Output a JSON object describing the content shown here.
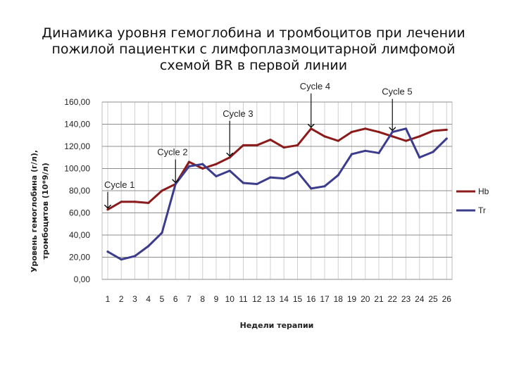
{
  "title_lines": [
    "Динамика уровня гемоглобина и тромбоцитов при  лечении",
    "пожилой пациентки с лимфоплазмоцитарной лимфомой",
    "схемой BR в первой линии"
  ],
  "chart_data": {
    "type": "line",
    "x": [
      1,
      2,
      3,
      4,
      5,
      6,
      7,
      8,
      9,
      10,
      11,
      12,
      13,
      14,
      15,
      16,
      17,
      18,
      19,
      20,
      21,
      22,
      23,
      24,
      25,
      26
    ],
    "xlabel": "Недели терапии",
    "ylabel_lines": [
      "Уровень гемоглобина (г/л),",
      "тромбоцитов (10*9/л)"
    ],
    "ylim": [
      0,
      160
    ],
    "y_ticks": [
      "0,00",
      "20,00",
      "40,00",
      "60,00",
      "80,00",
      "100,00",
      "120,00",
      "140,00",
      "160,00"
    ],
    "grid": "horizontal and vertical",
    "legend_position": "right",
    "series": [
      {
        "name": "Hb",
        "color": "#8b1a1a",
        "values": [
          63,
          70,
          70,
          69,
          80,
          86,
          106,
          100,
          104,
          110,
          121,
          121,
          126,
          119,
          121,
          136,
          129,
          125,
          133,
          136,
          133,
          129,
          125,
          129,
          134,
          135
        ]
      },
      {
        "name": "Tr",
        "color": "#3c3c8c",
        "values": [
          25,
          18,
          21,
          30,
          42,
          86,
          102,
          104,
          93,
          98,
          87,
          86,
          92,
          91,
          97,
          82,
          84,
          94,
          113,
          116,
          114,
          133,
          136,
          110,
          115,
          127
        ]
      }
    ],
    "annotations": [
      {
        "text": "Cycle 1",
        "x": 1,
        "y": 63
      },
      {
        "text": "Cycle 2",
        "x": 6,
        "y": 86
      },
      {
        "text": "Cycle 3",
        "x": 10,
        "y": 110
      },
      {
        "text": "Cycle 4",
        "x": 16,
        "y": 136
      },
      {
        "text": "Cycle 5",
        "x": 22,
        "y": 133
      }
    ]
  }
}
